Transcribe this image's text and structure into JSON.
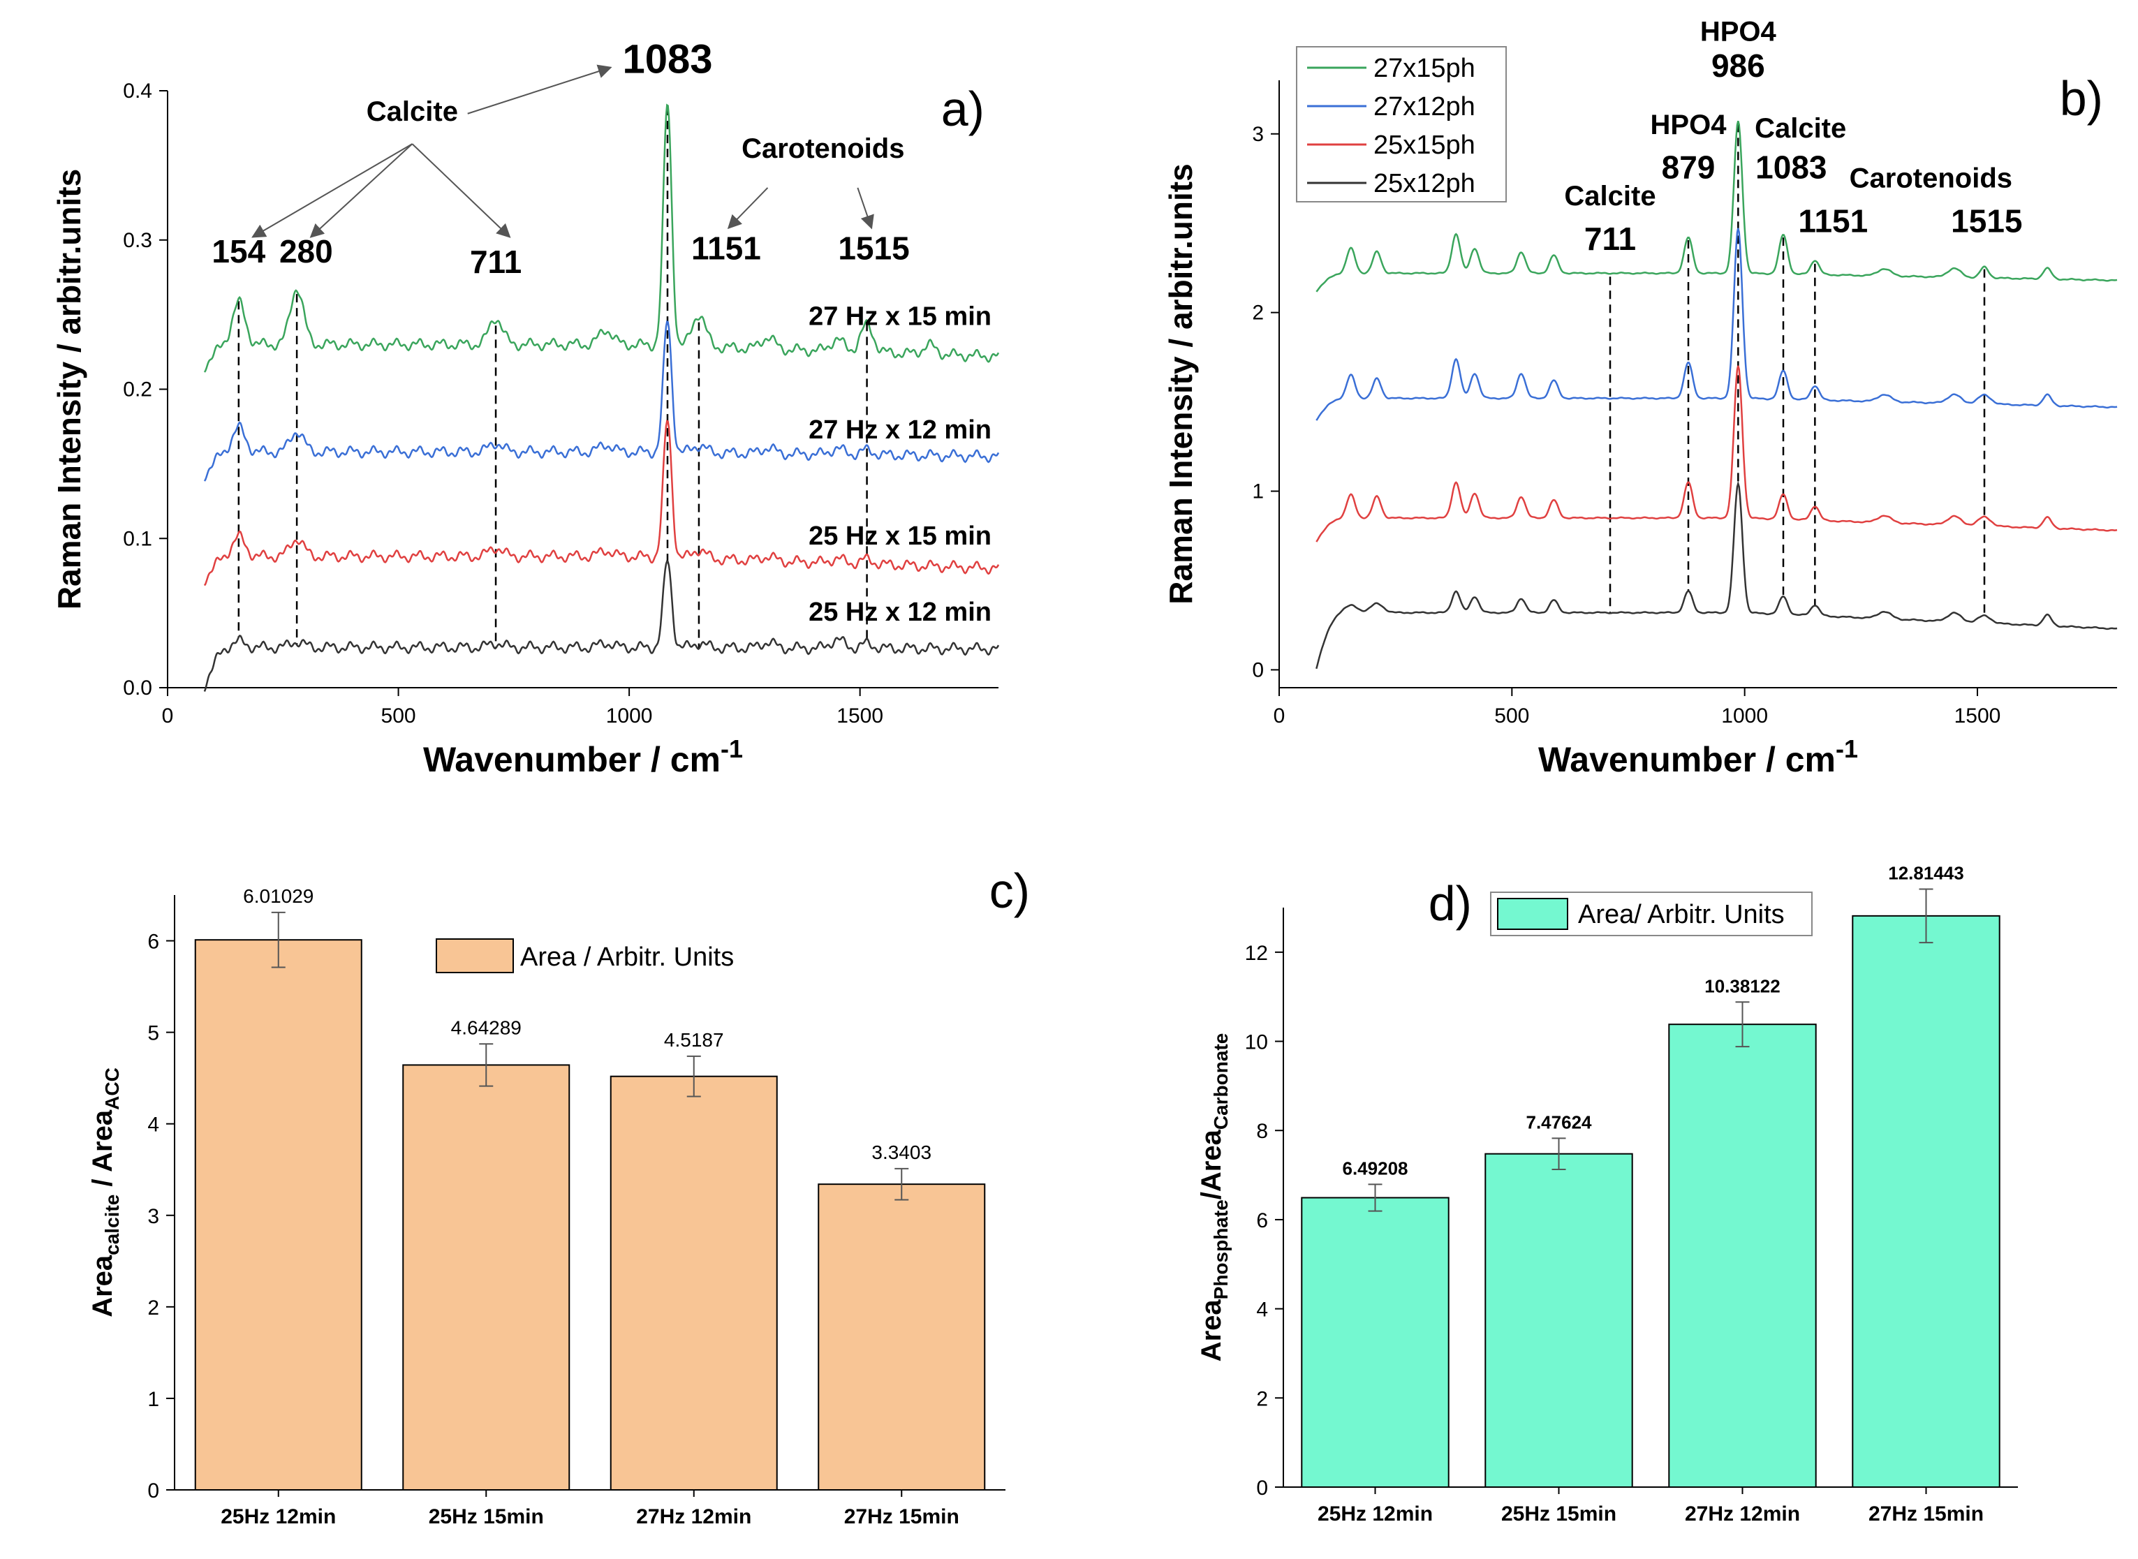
{
  "chart_data": [
    {
      "panel": "a)",
      "type": "line",
      "xlabel": "Wavenumber / cm",
      "xlabel_sup": "-1",
      "ylabel": "Raman Intensity / arbitr.units",
      "xlim": [
        0,
        1800
      ],
      "ylim": [
        0,
        0.4
      ],
      "xticks": [
        0,
        500,
        1000,
        1500
      ],
      "xtick_labels": [
        "0",
        "500",
        "1000",
        "1500"
      ],
      "yticks": [
        0,
        0.1,
        0.2,
        0.3,
        0.4
      ],
      "ytick_labels": [
        "0.0",
        "0.1",
        "0.2",
        "0.3",
        "0.4"
      ],
      "series": [
        {
          "name": "27 Hz x 15 min",
          "color": "#3aa55c",
          "base": 0.23,
          "start": 0.215,
          "end": 0.222,
          "peaks": [
            [
              154,
              0.028
            ],
            [
              280,
              0.038
            ],
            [
              711,
              0.018
            ],
            [
              950,
              0.01
            ],
            [
              1083,
              0.162
            ],
            [
              1151,
              0.022
            ],
            [
              1300,
              0.008
            ],
            [
              1450,
              0.008
            ],
            [
              1515,
              0.018
            ],
            [
              1650,
              0.006
            ]
          ]
        },
        {
          "name": "27 Hz x 12 min",
          "color": "#3a6fd6",
          "base": 0.158,
          "start": 0.142,
          "end": 0.155,
          "peaks": [
            [
              154,
              0.016
            ],
            [
              280,
              0.014
            ],
            [
              711,
              0.006
            ],
            [
              950,
              0.005
            ],
            [
              1083,
              0.088
            ],
            [
              1151,
              0.005
            ],
            [
              1300,
              0.004
            ],
            [
              1450,
              0.004
            ],
            [
              1515,
              0.003
            ]
          ]
        },
        {
          "name": "25 Hz x 15 min",
          "color": "#e04040",
          "base": 0.088,
          "start": 0.072,
          "end": 0.08,
          "peaks": [
            [
              154,
              0.013
            ],
            [
              280,
              0.012
            ],
            [
              711,
              0.006
            ],
            [
              950,
              0.004
            ],
            [
              1083,
              0.092
            ],
            [
              1151,
              0.006
            ],
            [
              1300,
              0.003
            ],
            [
              1450,
              0.003
            ],
            [
              1515,
              0.003
            ]
          ]
        },
        {
          "name": "25 Hz x 12 min",
          "color": "#333333",
          "base": 0.027,
          "start": 0.001,
          "end": 0.026,
          "peaks": [
            [
              154,
              0.004
            ],
            [
              280,
              0.004
            ],
            [
              711,
              0.003
            ],
            [
              950,
              0.003
            ],
            [
              1083,
              0.058
            ],
            [
              1151,
              0.003
            ],
            [
              1300,
              0.004
            ],
            [
              1450,
              0.006
            ],
            [
              1515,
              0.003
            ]
          ]
        }
      ],
      "series_labels": [
        {
          "text": "27 Hz x 15 min",
          "y": 0.243
        },
        {
          "text": "27 Hz x 12 min",
          "y": 0.167
        },
        {
          "text": "25 Hz x 15 min",
          "y": 0.096
        },
        {
          "text": "25 Hz x 12 min",
          "y": 0.045
        }
      ],
      "dashed_lines": [
        154,
        280,
        711,
        1083,
        1151,
        1515
      ],
      "peak_labels": [
        {
          "text": "154",
          "x": 154,
          "y": 0.285
        },
        {
          "text": "280",
          "x": 300,
          "y": 0.285
        },
        {
          "text": "711",
          "x": 711,
          "y": 0.278
        },
        {
          "text": "1083",
          "x": 1083,
          "y": 0.412
        },
        {
          "text": "1151",
          "x": 1210,
          "y": 0.287
        },
        {
          "text": "1515",
          "x": 1530,
          "y": 0.287
        }
      ],
      "group_labels": [
        {
          "text": "Calcite",
          "x": 530,
          "y": 0.38
        },
        {
          "text": "Carotenoids",
          "x": 1420,
          "y": 0.355
        }
      ],
      "corner_label": "a)"
    },
    {
      "panel": "b)",
      "type": "line",
      "xlabel": "Wavenumber / cm",
      "xlabel_sup": "-1",
      "ylabel": "Raman Intensity / arbitr.units",
      "xlim": [
        0,
        1800
      ],
      "ylim": [
        -0.1,
        3.3
      ],
      "xticks": [
        0,
        500,
        1000,
        1500
      ],
      "xtick_labels": [
        "0",
        "500",
        "1000",
        "1500"
      ],
      "yticks": [
        0,
        1,
        2,
        3
      ],
      "ytick_labels": [
        "0",
        "1",
        "2",
        "3"
      ],
      "legend_position": "top-left",
      "series": [
        {
          "name": "27x15ph",
          "color": "#3aa55c",
          "base": 2.22,
          "start": 2.12,
          "end": 2.18,
          "peaks": [
            [
              154,
              0.14
            ],
            [
              210,
              0.12
            ],
            [
              380,
              0.22
            ],
            [
              420,
              0.14
            ],
            [
              520,
              0.12
            ],
            [
              590,
              0.1
            ],
            [
              879,
              0.2
            ],
            [
              986,
              0.85
            ],
            [
              1083,
              0.22
            ],
            [
              1151,
              0.08
            ],
            [
              1300,
              0.04
            ],
            [
              1450,
              0.05
            ],
            [
              1515,
              0.06
            ],
            [
              1650,
              0.06
            ]
          ]
        },
        {
          "name": "27x12ph",
          "color": "#3a6fd6",
          "base": 1.52,
          "start": 1.4,
          "end": 1.47,
          "peaks": [
            [
              154,
              0.13
            ],
            [
              210,
              0.11
            ],
            [
              380,
              0.22
            ],
            [
              420,
              0.14
            ],
            [
              520,
              0.14
            ],
            [
              590,
              0.1
            ],
            [
              879,
              0.2
            ],
            [
              986,
              0.95
            ],
            [
              1083,
              0.16
            ],
            [
              1151,
              0.08
            ],
            [
              1300,
              0.04
            ],
            [
              1450,
              0.05
            ],
            [
              1515,
              0.05
            ],
            [
              1650,
              0.06
            ]
          ]
        },
        {
          "name": "25x15ph",
          "color": "#e04040",
          "base": 0.85,
          "start": 0.72,
          "end": 0.78,
          "peaks": [
            [
              154,
              0.13
            ],
            [
              210,
              0.12
            ],
            [
              380,
              0.2
            ],
            [
              420,
              0.14
            ],
            [
              520,
              0.12
            ],
            [
              590,
              0.1
            ],
            [
              879,
              0.2
            ],
            [
              986,
              0.85
            ],
            [
              1083,
              0.14
            ],
            [
              1151,
              0.08
            ],
            [
              1300,
              0.04
            ],
            [
              1450,
              0.05
            ],
            [
              1515,
              0.05
            ],
            [
              1650,
              0.06
            ]
          ]
        },
        {
          "name": "25x12ph",
          "color": "#333333",
          "base": 0.32,
          "start": 0.01,
          "end": 0.23,
          "peaks": [
            [
              154,
              0.04
            ],
            [
              210,
              0.05
            ],
            [
              380,
              0.12
            ],
            [
              420,
              0.09
            ],
            [
              520,
              0.08
            ],
            [
              590,
              0.07
            ],
            [
              879,
              0.12
            ],
            [
              986,
              0.72
            ],
            [
              1083,
              0.1
            ],
            [
              1151,
              0.06
            ],
            [
              1300,
              0.04
            ],
            [
              1450,
              0.05
            ],
            [
              1515,
              0.04
            ],
            [
              1650,
              0.06
            ]
          ]
        }
      ],
      "dashed_lines": [
        711,
        879,
        986,
        1083,
        1151,
        1515
      ],
      "peak_labels": [
        {
          "text": "711",
          "x": 711,
          "y": 2.35
        },
        {
          "text": "879",
          "x": 879,
          "y": 2.75
        },
        {
          "text": "986",
          "x": 986,
          "y": 3.32
        },
        {
          "text": "1083",
          "x": 1100,
          "y": 2.75
        },
        {
          "text": "1151",
          "x": 1190,
          "y": 2.45
        },
        {
          "text": "1515",
          "x": 1520,
          "y": 2.45
        }
      ],
      "group_labels": [
        {
          "text": "Calcite",
          "x": 711,
          "y": 2.6
        },
        {
          "text": "HPO4",
          "x": 879,
          "y": 3.0
        },
        {
          "text": "HPO4",
          "x": 986,
          "y": 3.52
        },
        {
          "text": "Calcite",
          "x": 1120,
          "y": 2.98
        },
        {
          "text": "Carotenoids",
          "x": 1400,
          "y": 2.7
        }
      ],
      "corner_label": "b)"
    },
    {
      "panel": "c)",
      "type": "bar",
      "categories": [
        "25Hz 12min",
        "25Hz 15min",
        "27Hz 12min",
        "27Hz 15min"
      ],
      "values": [
        6.01029,
        4.64289,
        4.5187,
        3.3403
      ],
      "value_labels": [
        "6.01029",
        "4.64289",
        "4.5187",
        "3.3403"
      ],
      "errors": [
        0.3,
        0.23,
        0.22,
        0.17
      ],
      "ylim": [
        0,
        6.5
      ],
      "yticks": [
        0,
        1,
        2,
        3,
        4,
        5,
        6
      ],
      "ytick_labels": [
        "0",
        "1",
        "2",
        "3",
        "4",
        "5",
        "6"
      ],
      "ylabel_main": "Area",
      "ylabel_sub1": "calcite",
      "ylabel_mid": " / Area",
      "ylabel_sub2": "ACC",
      "legend": "Area / Arbitr. Units",
      "color": "#f8c595",
      "corner_label": "c)"
    },
    {
      "panel": "d)",
      "type": "bar",
      "categories": [
        "25Hz 12min",
        "25Hz 15min",
        "27Hz  12min",
        "27Hz 15min"
      ],
      "values": [
        6.49208,
        7.47624,
        10.38122,
        12.81443
      ],
      "value_labels": [
        "6.49208",
        "7.47624",
        "10.38122",
        "12.81443"
      ],
      "errors": [
        0.3,
        0.35,
        0.5,
        0.6
      ],
      "ylim": [
        0,
        13
      ],
      "yticks": [
        0,
        2,
        4,
        6,
        8,
        10,
        12
      ],
      "ytick_labels": [
        "0",
        "2",
        "4",
        "6",
        "8",
        "10",
        "12"
      ],
      "ylabel_main": "Area",
      "ylabel_sub1": "Phosphate",
      "ylabel_mid": "/Area",
      "ylabel_sub2": "Carbonate",
      "legend": "Area/ Arbitr. Units",
      "color": "#74f8d0",
      "corner_label": "d)"
    }
  ]
}
